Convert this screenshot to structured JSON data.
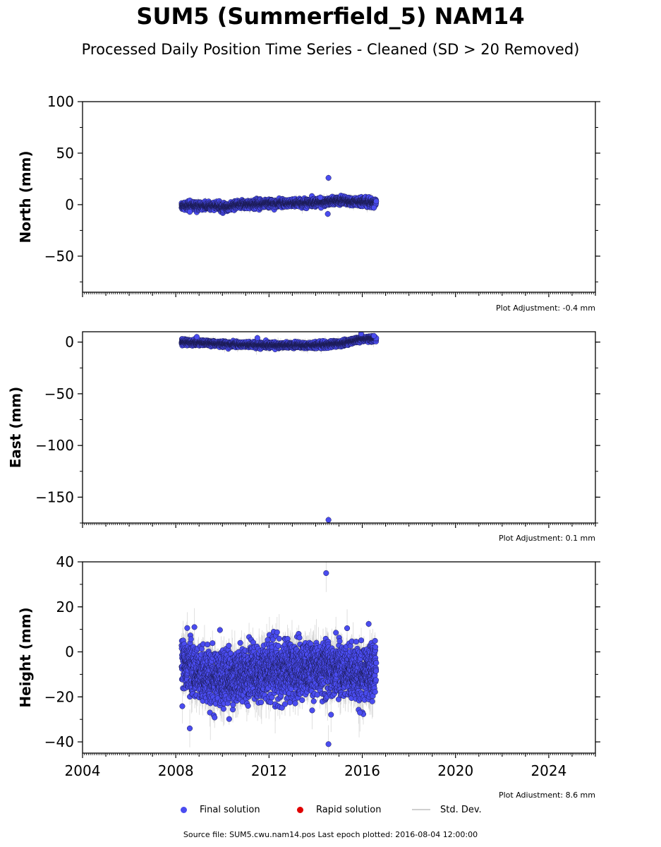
{
  "title": "SUM5 (Summerfield_5) NAM14",
  "subtitle": "Processed Daily Position Time Series - Cleaned (SD > 20 Removed)",
  "source_text": "Source file: SUM5.cwu.nam14.pos  Last epoch plotted: 2016-08-04 12:00:00",
  "colors": {
    "final": "#4a4cf0",
    "rapid": "#e00000",
    "stddev": "#c8c8c8",
    "edge": "#1a1a50"
  },
  "legend": [
    {
      "label": "Final solution",
      "type": "dot",
      "color": "#4a4cf0"
    },
    {
      "label": "Rapid solution",
      "type": "dot",
      "color": "#e00000"
    },
    {
      "label": "Std. Dev.",
      "type": "line",
      "color": "#c8c8c8"
    }
  ],
  "chart_data": [
    {
      "type": "scatter",
      "ylabel": "North (mm)",
      "adjustment": "Plot Adjustment: -0.4 mm",
      "xlim": [
        2004,
        2026
      ],
      "ylim": [
        -85,
        100
      ],
      "yticks": [
        100,
        50,
        0,
        -50
      ],
      "ytick_labels": [
        "100",
        "50",
        "0",
        "−50"
      ],
      "x_range": [
        2008.25,
        2016.6
      ],
      "trend": [
        [
          2008.25,
          -1
        ],
        [
          2009.9,
          -1.5
        ],
        [
          2010.2,
          -3
        ],
        [
          2010.6,
          0
        ],
        [
          2012,
          1
        ],
        [
          2014,
          2
        ],
        [
          2015,
          4
        ],
        [
          2016.6,
          2
        ]
      ],
      "scatter_sd": 1.8,
      "errbar_sd": 3,
      "outliers": [
        [
          2014.55,
          26
        ],
        [
          2014.52,
          -9
        ],
        [
          2008.6,
          -7
        ],
        [
          2014.2,
          7
        ],
        [
          2016.5,
          -3
        ]
      ]
    },
    {
      "type": "scatter",
      "ylabel": "East (mm)",
      "adjustment": "Plot Adjustment: 0.1 mm",
      "xlim": [
        2004,
        2026
      ],
      "ylim": [
        -175,
        10
      ],
      "yticks": [
        0,
        -50,
        -100,
        -150
      ],
      "ytick_labels": [
        "0",
        "−50",
        "−100",
        "−150"
      ],
      "x_range": [
        2008.25,
        2016.6
      ],
      "trend": [
        [
          2008.25,
          0
        ],
        [
          2009,
          -0.5
        ],
        [
          2010,
          -2
        ],
        [
          2012,
          -3
        ],
        [
          2014,
          -3
        ],
        [
          2015.2,
          -1
        ],
        [
          2016,
          3
        ],
        [
          2016.6,
          3
        ]
      ],
      "scatter_sd": 1.3,
      "errbar_sd": 3,
      "outliers": [
        [
          2014.55,
          -172
        ],
        [
          2011.5,
          4
        ],
        [
          2008.9,
          5
        ],
        [
          2015.95,
          8
        ],
        [
          2016.5,
          6
        ]
      ]
    },
    {
      "type": "scatter",
      "ylabel": "Height (mm)",
      "adjustment": "Plot Adjustment: 8.6 mm",
      "xlim": [
        2004,
        2026
      ],
      "ylim": [
        -45,
        40
      ],
      "yticks": [
        40,
        20,
        0,
        -20,
        -40
      ],
      "ytick_labels": [
        "40",
        "20",
        "0",
        "−20",
        "−40"
      ],
      "xticks": [
        2004,
        2008,
        2012,
        2016,
        2020,
        2024
      ],
      "xtick_labels": [
        "2004",
        "2008",
        "2012",
        "2016",
        "2020",
        "2024"
      ],
      "x_range": [
        2008.25,
        2016.6
      ],
      "trend": [
        [
          2008.25,
          -4
        ],
        [
          2009,
          -10
        ],
        [
          2010,
          -12
        ],
        [
          2012,
          -8
        ],
        [
          2014,
          -8
        ],
        [
          2015,
          -8
        ],
        [
          2016,
          -10
        ],
        [
          2016.6,
          -8
        ]
      ],
      "scatter_sd": 6,
      "errbar_sd": 7,
      "outliers": [
        [
          2014.45,
          35
        ],
        [
          2014.55,
          -41
        ],
        [
          2008.6,
          -34
        ],
        [
          2008.8,
          11
        ],
        [
          2015.9,
          -27
        ],
        [
          2015.35,
          10.5
        ],
        [
          2013.85,
          -26
        ]
      ]
    }
  ]
}
